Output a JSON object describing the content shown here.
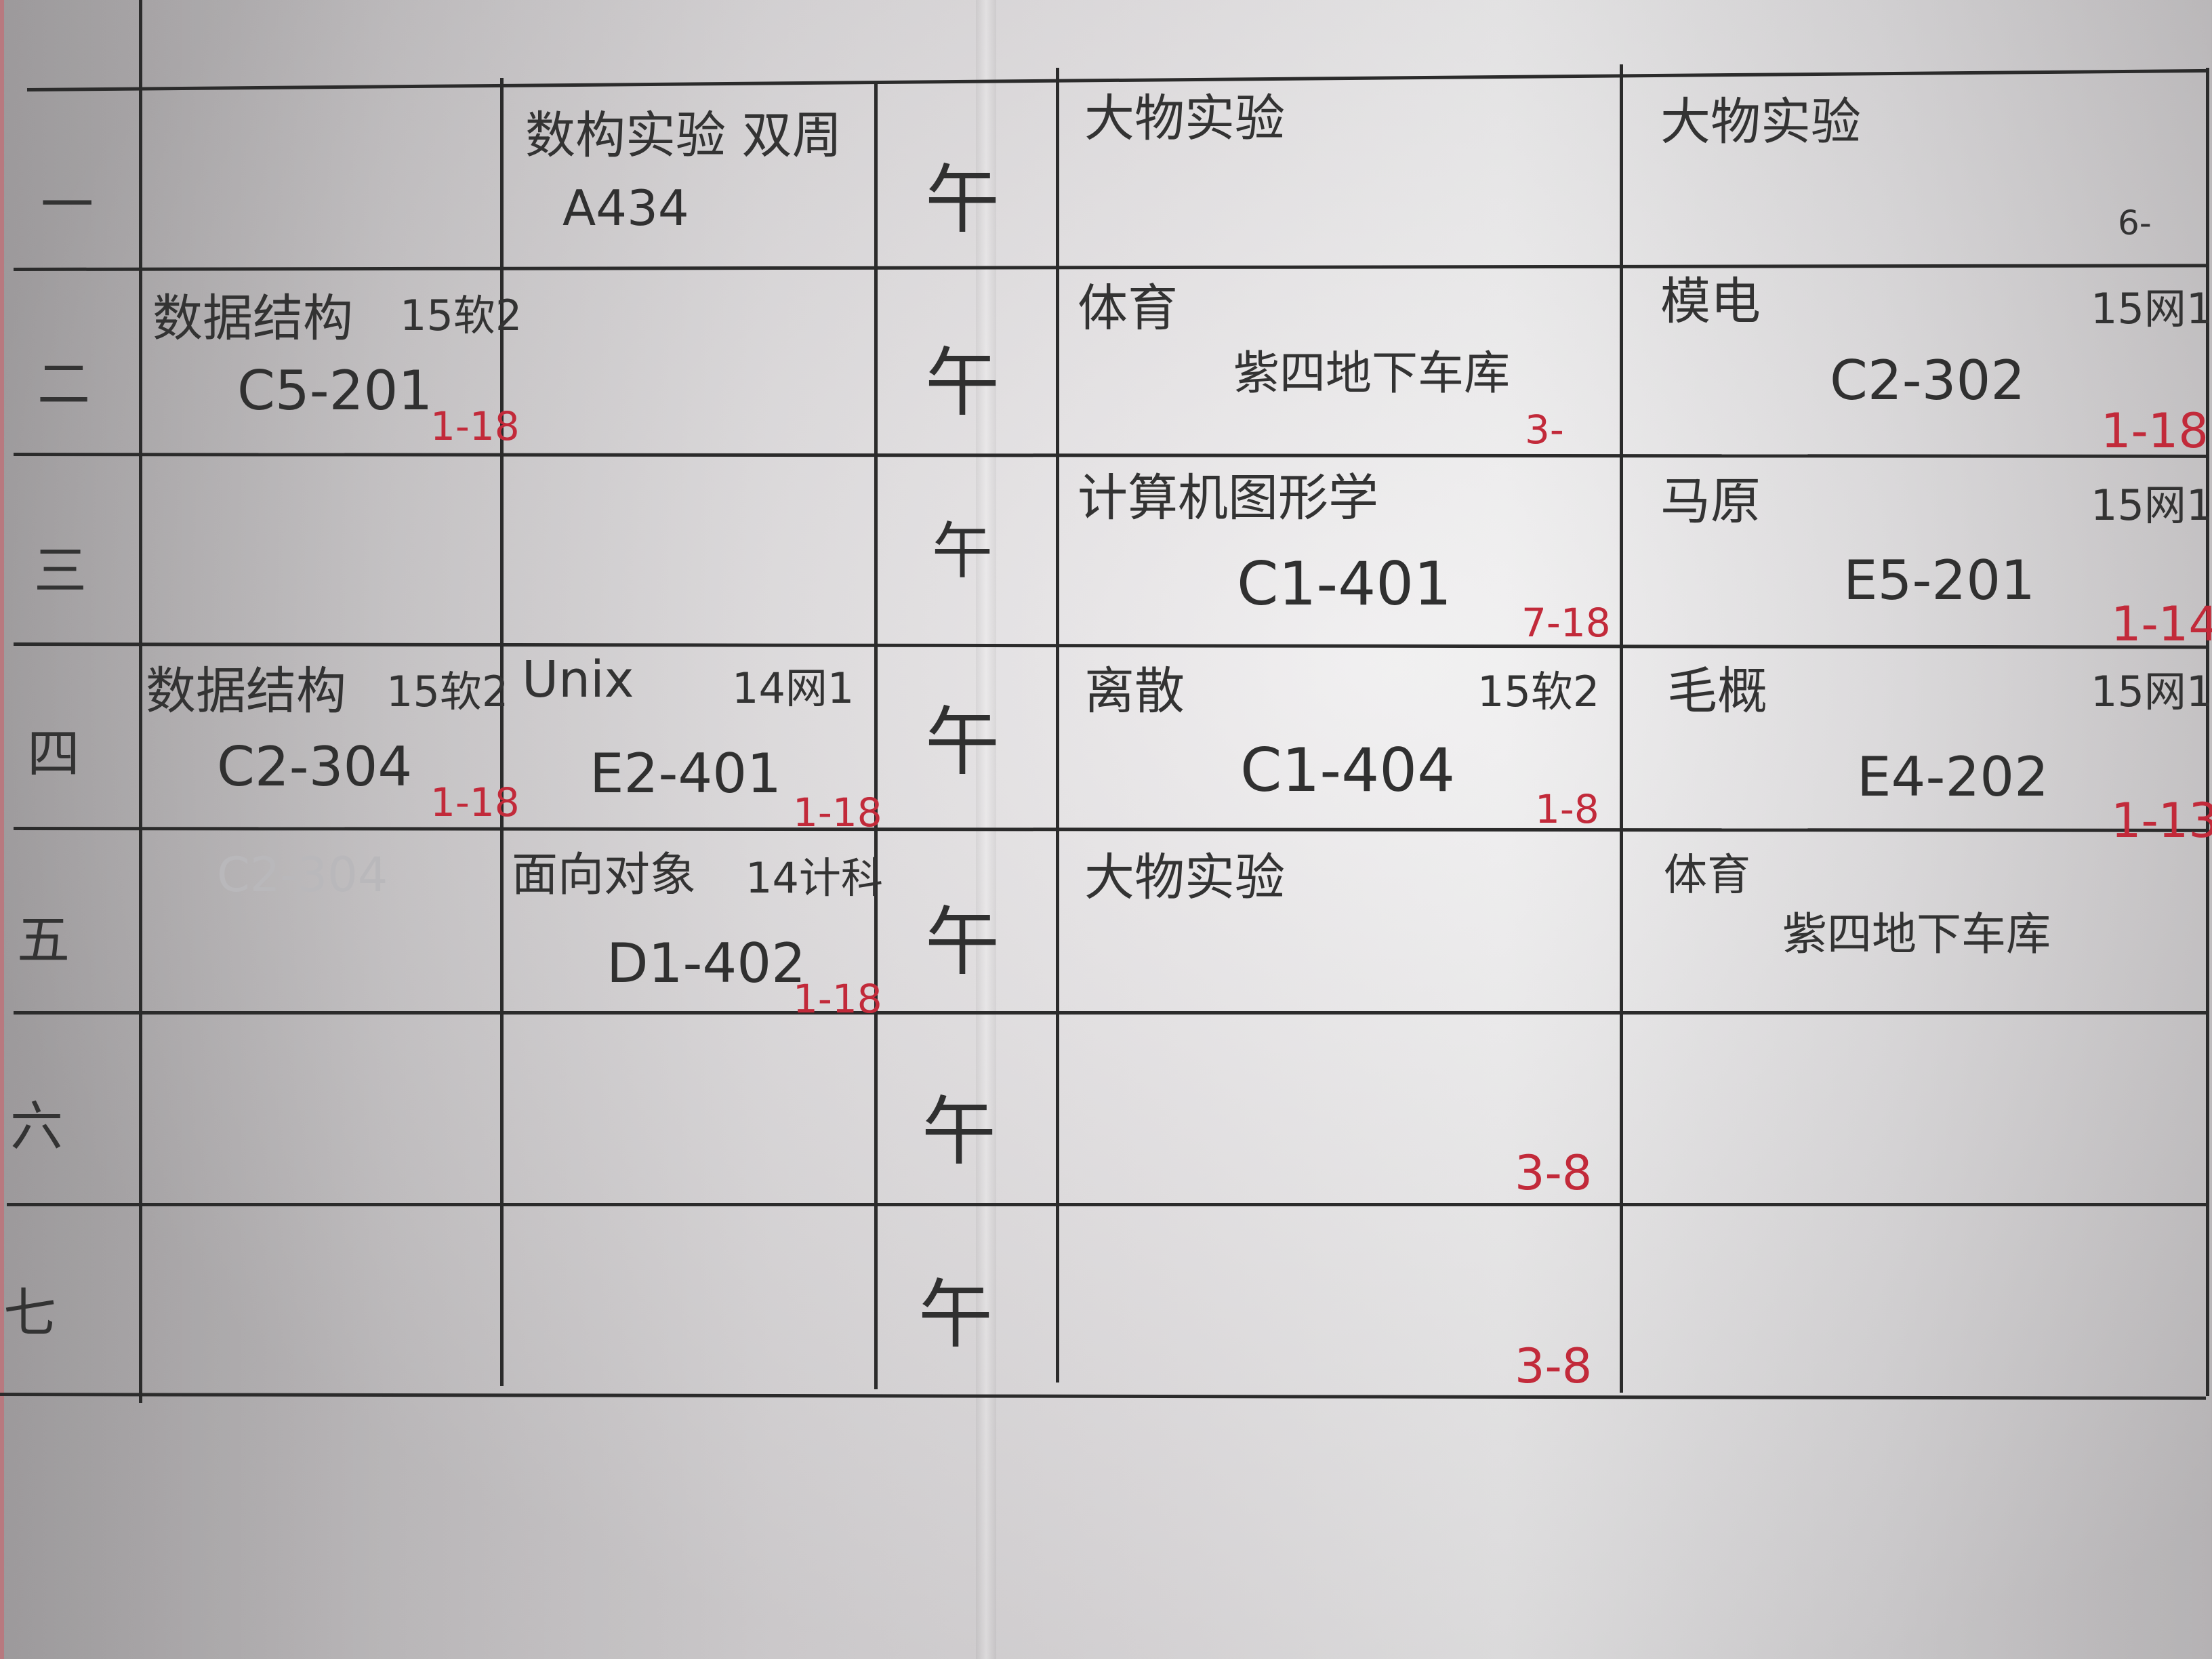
{
  "days": [
    "一",
    "二",
    "三",
    "四",
    "五",
    "六",
    "七"
  ],
  "noon_label": "午",
  "rows": [
    {
      "col2": {
        "title": "数构实验 双周",
        "room": "A434"
      },
      "col4": {
        "title": "大物实验"
      },
      "col5": {
        "title": "大物实验",
        "weeks": "6-"
      }
    },
    {
      "col1": {
        "title": "数据结构",
        "cls": "15软2",
        "room": "C5-201",
        "weeks": "1-18"
      },
      "col4": {
        "title": "体育",
        "room": "紫四地下车库",
        "weeks": "3-"
      },
      "col5": {
        "title": "模电",
        "cls": "15网1",
        "room": "C2-302",
        "weeks": "1-18"
      }
    },
    {
      "col4": {
        "title": "计算机图形学",
        "room": "C1-401",
        "weeks": "7-18"
      },
      "col5": {
        "title": "马原",
        "cls": "15网1",
        "room": "E5-201",
        "weeks": "1-14"
      }
    },
    {
      "col1": {
        "title": "数据结构",
        "cls": "15软2",
        "room": "C2-304",
        "weeks": "1-18"
      },
      "col2": {
        "title": "Unix",
        "cls": "14网1",
        "room": "E2-401",
        "weeks": "1-18"
      },
      "col4": {
        "title": "离散",
        "cls": "15软2",
        "room": "C1-404",
        "weeks": "1-8"
      },
      "col5": {
        "title": "毛概",
        "cls": "15网1",
        "room": "E4-202",
        "weeks": "1-13"
      }
    },
    {
      "col1": {
        "faint": "C2-304"
      },
      "col2": {
        "title": "面向对象",
        "cls": "14计科",
        "room": "D1-402",
        "weeks": "1-18"
      },
      "col4": {
        "title": "大物实验"
      },
      "col5": {
        "title": "体育",
        "room": "紫四地下车库"
      }
    },
    {
      "col4": {
        "weeks": "3-8"
      }
    },
    {
      "col4": {
        "weeks": "3-8"
      }
    }
  ]
}
